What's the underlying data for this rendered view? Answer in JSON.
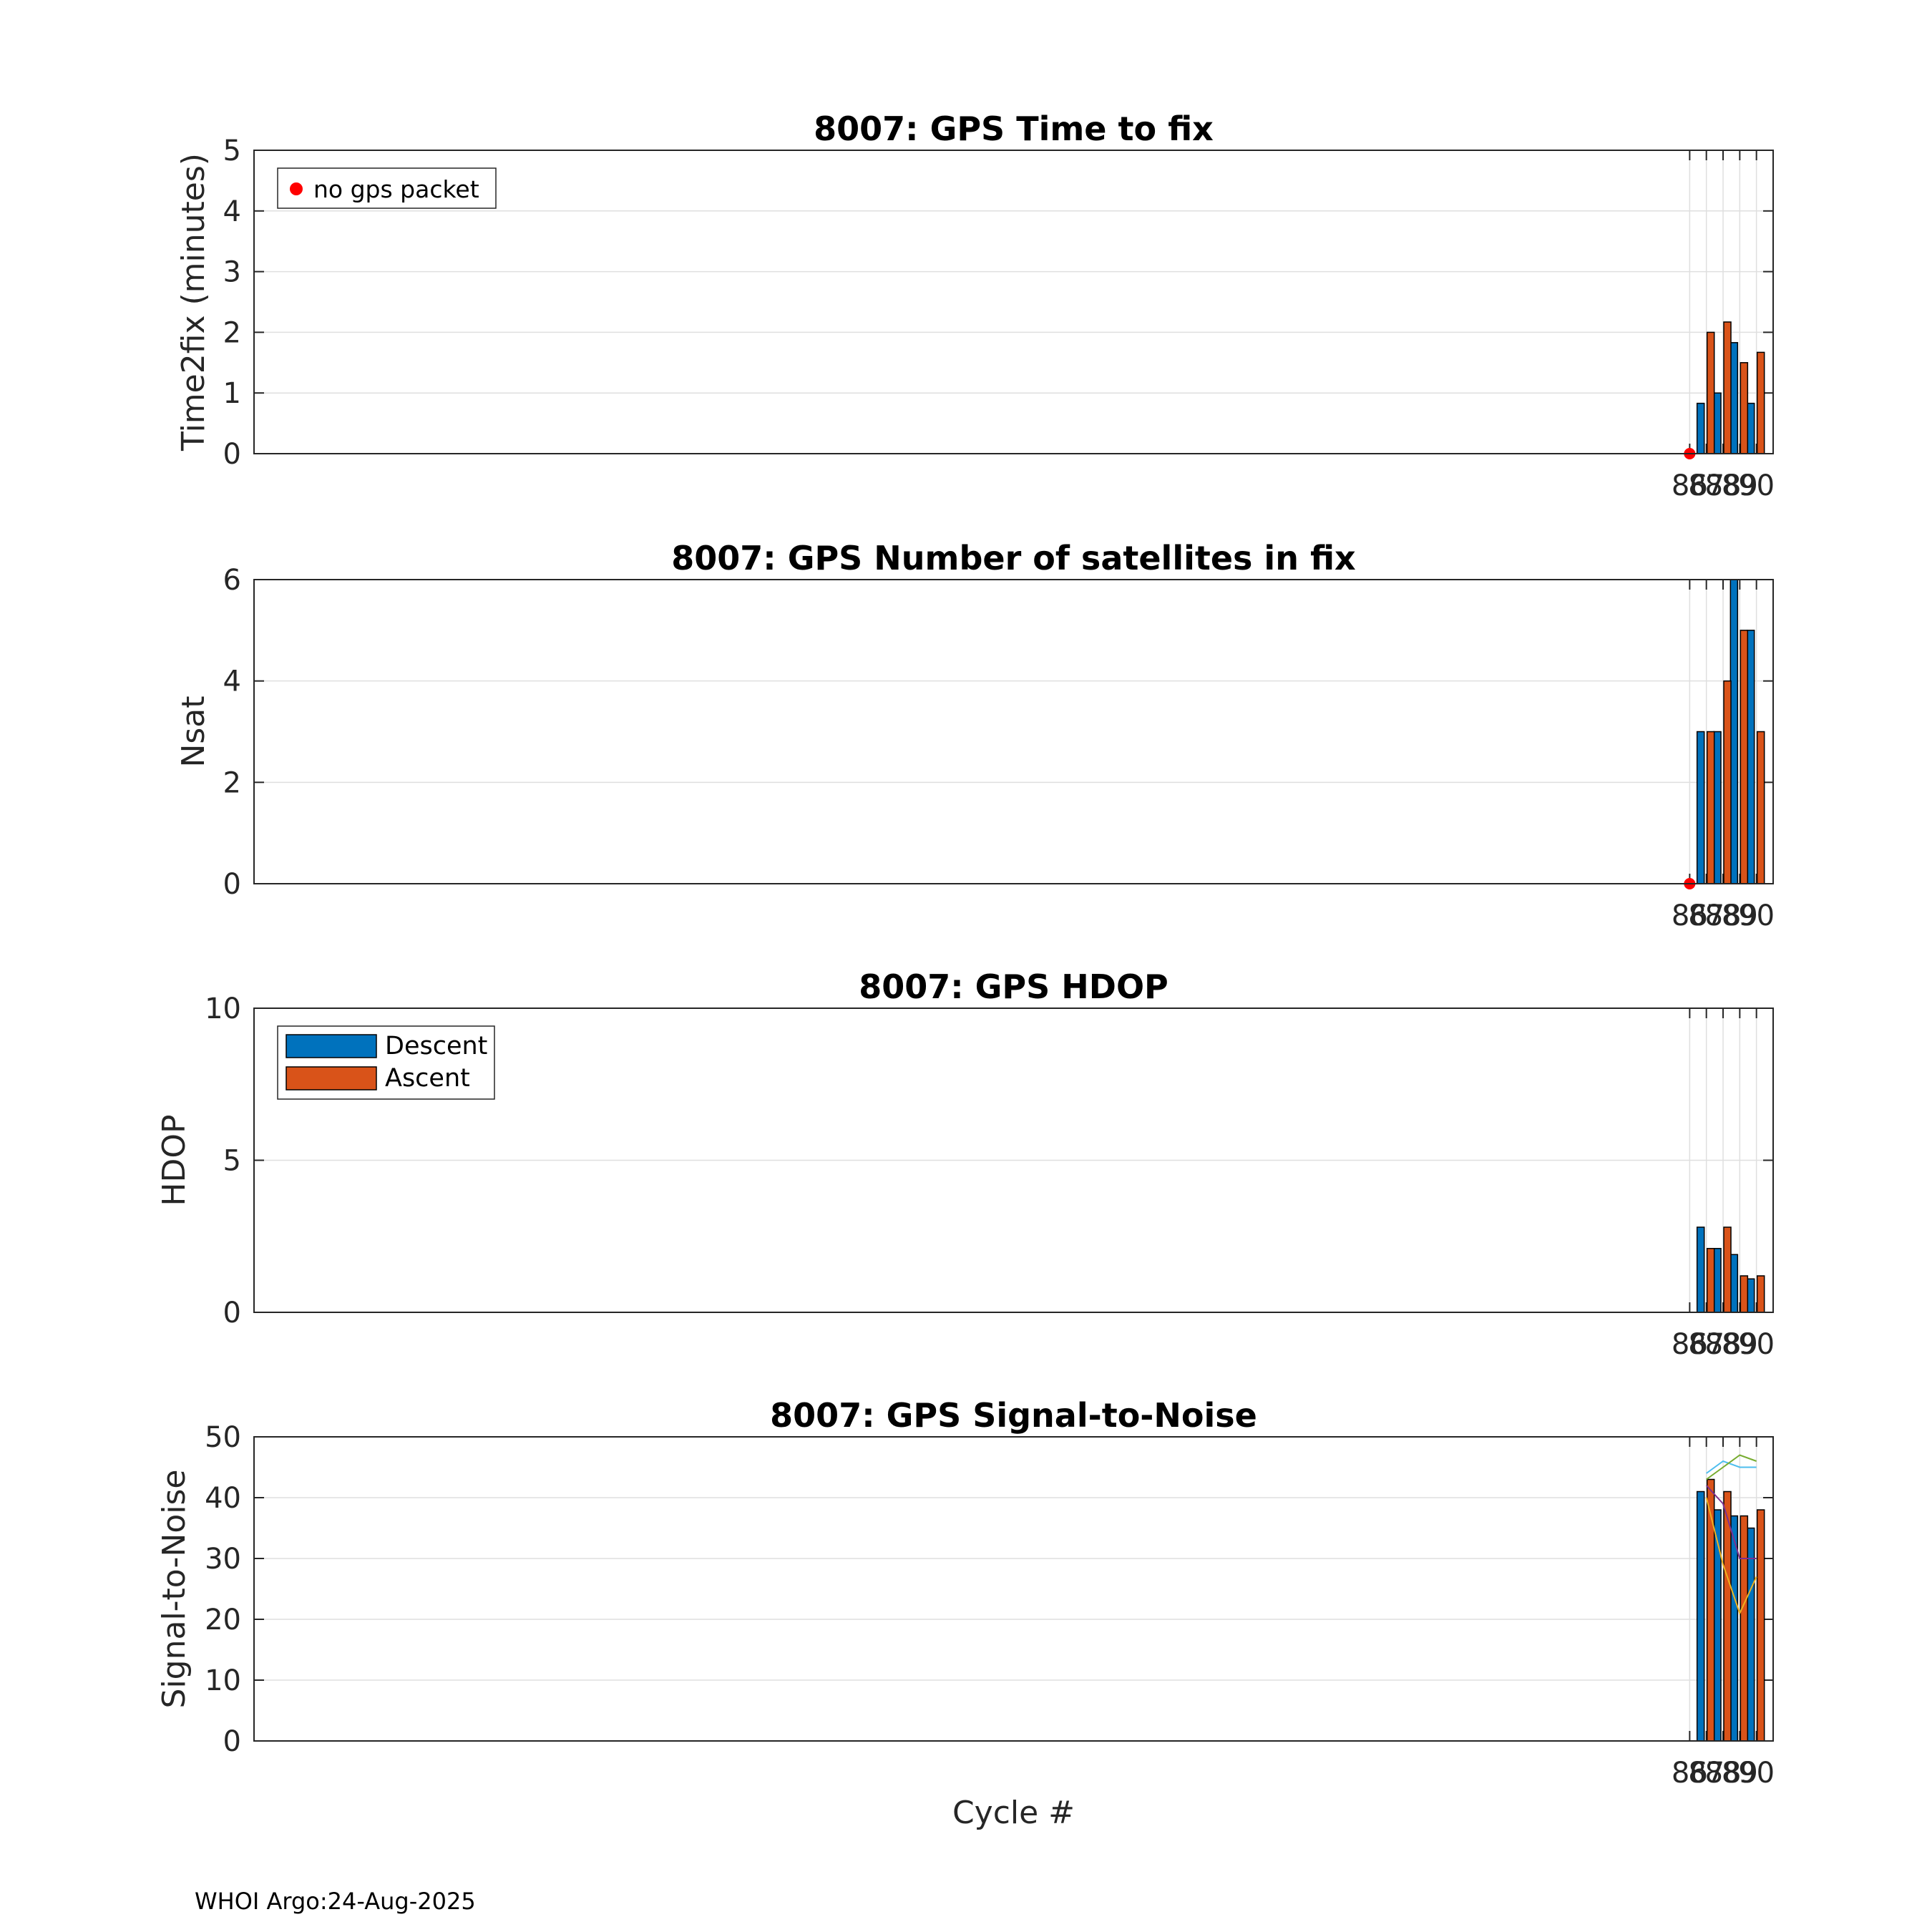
{
  "footer": "WHOI Argo:24-Aug-2025",
  "xlabel": "Cycle #",
  "colors": {
    "descent": "#0072BD",
    "ascent": "#D95319",
    "no_packet": "#FF0000",
    "grid": "#DFDFDF",
    "axis": "#262626"
  },
  "chart_data": [
    {
      "type": "bar",
      "title": "8007: GPS Time to fix",
      "ylabel": "Time2fix (minutes)",
      "xlabel": "",
      "ylim": [
        0,
        5
      ],
      "yticks": [
        "0",
        "1",
        "2",
        "3",
        "4",
        "5"
      ],
      "grid": true,
      "categories": [
        86,
        87,
        88,
        89,
        90
      ],
      "xtick_labels": [
        "86",
        "87",
        "88",
        "89",
        "90"
      ],
      "series": [
        {
          "name": "Descent",
          "values": [
            null,
            0.83,
            1.0,
            1.83,
            0.83
          ]
        },
        {
          "name": "Ascent",
          "values": [
            null,
            2.0,
            2.17,
            1.5,
            1.67
          ]
        }
      ],
      "markers": [
        {
          "name": "no gps packet",
          "x": 86,
          "y": 0
        }
      ],
      "legend": {
        "placement": "top-left",
        "entries": [
          {
            "label": "no gps packet",
            "kind": "marker"
          }
        ]
      }
    },
    {
      "type": "bar",
      "title": "8007: GPS Number of satellites in fix",
      "ylabel": "Nsat",
      "xlabel": "",
      "ylim": [
        0,
        6
      ],
      "yticks": [
        "0",
        "2",
        "4",
        "6"
      ],
      "grid": true,
      "categories": [
        86,
        87,
        88,
        89,
        90
      ],
      "xtick_labels": [
        "86",
        "87",
        "88",
        "89",
        "90"
      ],
      "series": [
        {
          "name": "Descent",
          "values": [
            null,
            3,
            3,
            6,
            5
          ]
        },
        {
          "name": "Ascent",
          "values": [
            null,
            3,
            4,
            5,
            3
          ]
        }
      ],
      "markers": [
        {
          "name": "no gps packet",
          "x": 86,
          "y": 0
        }
      ]
    },
    {
      "type": "bar",
      "title": "8007: GPS HDOP",
      "ylabel": "HDOP",
      "xlabel": "",
      "ylim": [
        0,
        10
      ],
      "yticks": [
        "0",
        "5",
        "10"
      ],
      "grid": true,
      "categories": [
        86,
        87,
        88,
        89,
        90
      ],
      "xtick_labels": [
        "86",
        "87",
        "88",
        "89",
        "90"
      ],
      "series": [
        {
          "name": "Descent",
          "values": [
            null,
            2.8,
            2.1,
            1.9,
            1.1
          ]
        },
        {
          "name": "Ascent",
          "values": [
            null,
            2.1,
            2.8,
            1.2,
            1.2
          ]
        }
      ],
      "legend": {
        "placement": "top-left",
        "entries": [
          {
            "label": "Descent",
            "kind": "patch"
          },
          {
            "label": "Ascent",
            "kind": "patch"
          }
        ]
      }
    },
    {
      "type": "bar",
      "title": "8007: GPS Signal-to-Noise",
      "ylabel": "Signal-to-Noise",
      "xlabel": "Cycle #",
      "ylim": [
        0,
        50
      ],
      "yticks": [
        "0",
        "10",
        "20",
        "30",
        "40",
        "50"
      ],
      "grid": true,
      "categories": [
        86,
        87,
        88,
        89,
        90
      ],
      "xtick_labels": [
        "86",
        "87",
        "88",
        "89",
        "90"
      ],
      "series": [
        {
          "name": "Descent",
          "values": [
            null,
            41,
            38,
            37,
            35
          ]
        },
        {
          "name": "Ascent",
          "values": [
            null,
            43,
            41,
            37,
            38
          ]
        }
      ],
      "lines": [
        {
          "color": "#4DBEEE",
          "x": [
            87,
            88,
            89,
            90
          ],
          "y": [
            44,
            46,
            45,
            45
          ]
        },
        {
          "color": "#77AC30",
          "x": [
            87,
            88,
            89,
            90
          ],
          "y": [
            43,
            45,
            47,
            46
          ]
        },
        {
          "color": "#7E2F8E",
          "x": [
            87,
            88,
            89,
            90
          ],
          "y": [
            42,
            39,
            30,
            30
          ]
        },
        {
          "color": "#EDB120",
          "x": [
            87,
            88,
            89,
            90
          ],
          "y": [
            40,
            29,
            21,
            27
          ]
        }
      ]
    }
  ]
}
